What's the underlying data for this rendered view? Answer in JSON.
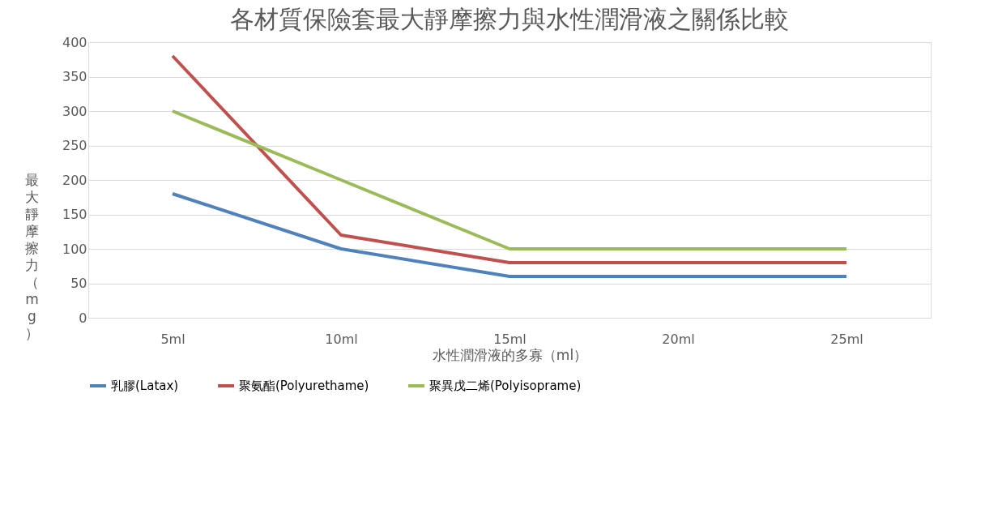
{
  "chart_data": {
    "type": "line",
    "title": "各材質保險套最大靜摩擦力與水性潤滑液之關係比較",
    "xlabel": "水性潤滑液的多寡（ml）",
    "ylabel": "最大靜摩擦力（mg）",
    "categories": [
      "5ml",
      "10ml",
      "15ml",
      "20ml",
      "25ml"
    ],
    "series": [
      {
        "name": "乳膠(Latax)",
        "color": "#4f81bd",
        "values": [
          180,
          100,
          60,
          60,
          60
        ]
      },
      {
        "name": "聚氨酯(Polyurethame)",
        "color": "#c0504d",
        "values": [
          380,
          120,
          80,
          80,
          80
        ]
      },
      {
        "name": "聚異戊二烯(Polyisoprame)",
        "color": "#9bbb59",
        "values": [
          300,
          200,
          100,
          100,
          100
        ]
      }
    ],
    "ylim": [
      0,
      400
    ],
    "yticks": [
      0,
      50,
      100,
      150,
      200,
      250,
      300,
      350,
      400
    ],
    "grid": "y",
    "legend": "bottom",
    "marker": "none",
    "line_style": "solid"
  }
}
